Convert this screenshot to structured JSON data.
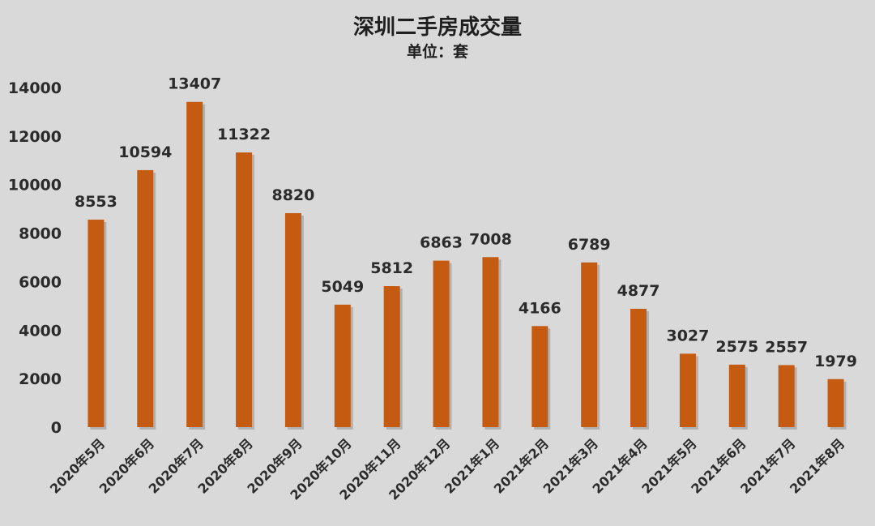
{
  "chart_data": {
    "type": "bar",
    "title": "深圳二手房成交量",
    "subtitle": "单位：套",
    "categories": [
      "2020年5月",
      "2020年6月",
      "2020年7月",
      "2020年8月",
      "2020年9月",
      "2020年10月",
      "2020年11月",
      "2020年12月",
      "2021年1月",
      "2021年2月",
      "2021年3月",
      "2021年4月",
      "2021年5月",
      "2021年6月",
      "2021年7月",
      "2021年8月"
    ],
    "values": [
      8553,
      10594,
      13407,
      11322,
      8820,
      5049,
      5812,
      6863,
      7008,
      4166,
      6789,
      4877,
      3027,
      2575,
      2557,
      1979
    ],
    "ylim": [
      0,
      14000
    ],
    "yticks": [
      0,
      2000,
      4000,
      6000,
      8000,
      10000,
      12000,
      14000
    ],
    "grid": false,
    "legend": "none",
    "bar_color": "#c55a11",
    "background_color": "#d9d9d9"
  }
}
